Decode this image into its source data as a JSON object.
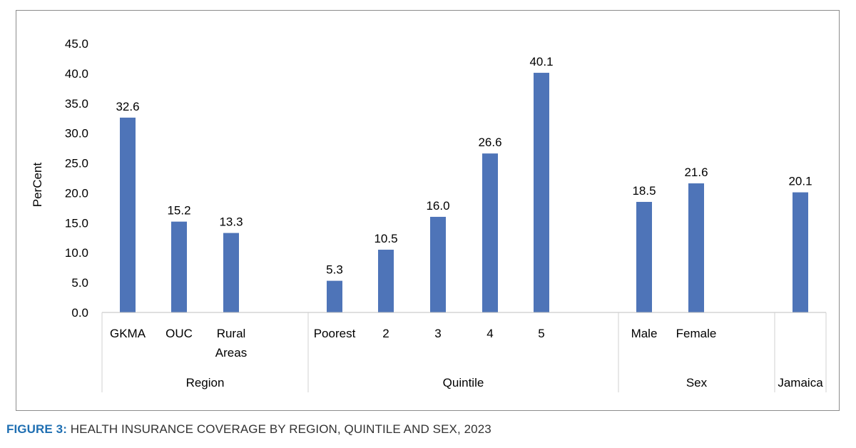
{
  "chart_data": {
    "type": "bar",
    "ylabel": "PerCent",
    "ylim": [
      0,
      45
    ],
    "yticks": [
      "0.0",
      "5.0",
      "10.0",
      "15.0",
      "20.0",
      "25.0",
      "30.0",
      "35.0",
      "40.0",
      "45.0"
    ],
    "grid": false,
    "bar_color": "#4e74b8",
    "groups": [
      {
        "name": "Region",
        "categories": [
          "GKMA",
          "OUC",
          "Rural Areas"
        ],
        "values": [
          32.6,
          15.2,
          13.3
        ],
        "labels": [
          "32.6",
          "15.2",
          "13.3"
        ]
      },
      {
        "name": "Quintile",
        "categories": [
          "Poorest",
          "2",
          "3",
          "4",
          "5"
        ],
        "values": [
          5.3,
          10.5,
          16.0,
          26.6,
          40.1
        ],
        "labels": [
          "5.3",
          "10.5",
          "16.0",
          "26.6",
          "40.1"
        ]
      },
      {
        "name": "Sex",
        "categories": [
          "Male",
          "Female"
        ],
        "values": [
          18.5,
          21.6
        ],
        "labels": [
          "18.5",
          "21.6"
        ]
      },
      {
        "name": "Jamaica",
        "categories": [
          ""
        ],
        "values": [
          20.1
        ],
        "labels": [
          "20.1"
        ]
      }
    ]
  },
  "caption": {
    "label": "FIGURE 3:",
    "text": "HEALTH INSURANCE COVERAGE BY REGION, QUINTILE AND SEX, 2023"
  }
}
